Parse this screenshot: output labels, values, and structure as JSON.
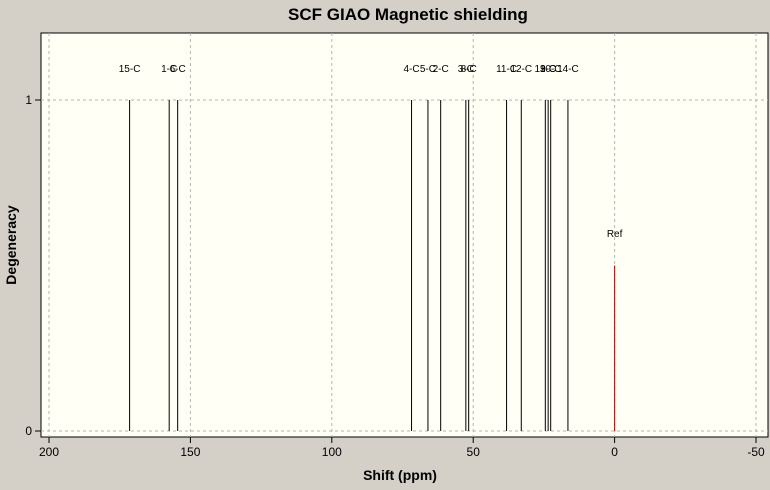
{
  "window": {
    "background": "#d4d0c8"
  },
  "chart_data": {
    "type": "bar",
    "title": "SCF GIAO Magnetic shielding",
    "xlabel": "Shift (ppm)",
    "ylabel": "Degeneracy",
    "xlim": [
      200,
      -50
    ],
    "ylim": [
      0,
      1.2
    ],
    "x_reversed": true,
    "x_ticks": [
      200,
      150,
      100,
      50,
      0,
      -50
    ],
    "y_ticks": [
      0,
      1
    ],
    "grid": true,
    "plot_background": "#fffff5",
    "colors": {
      "peak": "#000000",
      "ref": "#cc0000"
    },
    "peaks": [
      {
        "label": "15-C",
        "shift": 171.5,
        "degeneracy": 1
      },
      {
        "label": "1-C",
        "shift": 157.5,
        "degeneracy": 1
      },
      {
        "label": "6-C",
        "shift": 154.5,
        "degeneracy": 1
      },
      {
        "label": "4-C",
        "shift": 71.8,
        "degeneracy": 1
      },
      {
        "label": "5-C",
        "shift": 66.0,
        "degeneracy": 1
      },
      {
        "label": "2-C",
        "shift": 61.5,
        "degeneracy": 1
      },
      {
        "label": "3-C",
        "shift": 52.6,
        "degeneracy": 1
      },
      {
        "label": "8-C",
        "shift": 51.6,
        "degeneracy": 1
      },
      {
        "label": "11-C",
        "shift": 38.2,
        "degeneracy": 1
      },
      {
        "label": "12-C",
        "shift": 33.0,
        "degeneracy": 1
      },
      {
        "label": "13-C",
        "shift": 24.5,
        "degeneracy": 1
      },
      {
        "label": "9-C",
        "shift": 23.5,
        "degeneracy": 1
      },
      {
        "label": "10-C",
        "shift": 22.6,
        "degeneracy": 1
      },
      {
        "label": "14-C",
        "shift": 16.5,
        "degeneracy": 1
      }
    ],
    "reference": {
      "label": "Ref",
      "shift": 0,
      "degeneracy": 0.5
    }
  }
}
